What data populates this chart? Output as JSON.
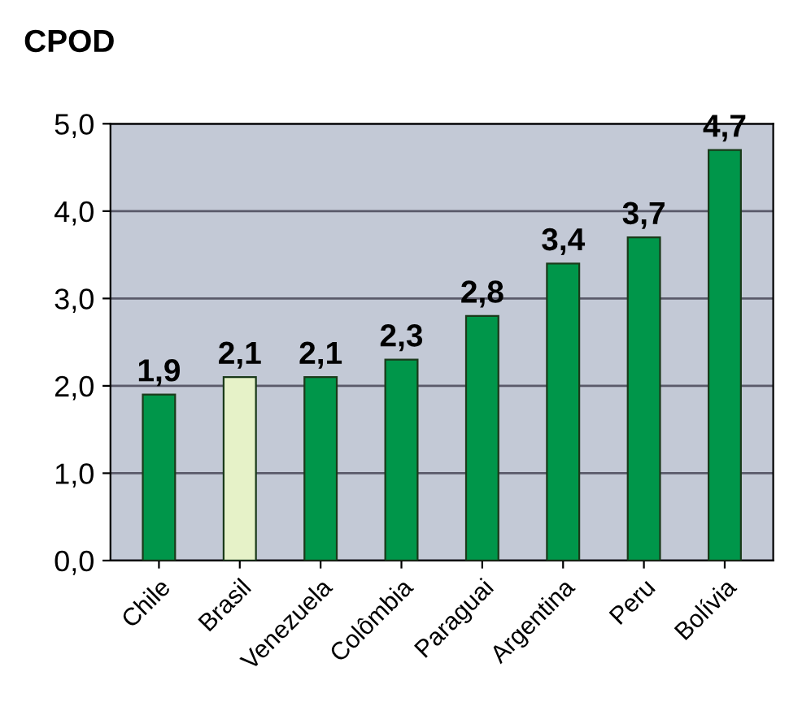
{
  "chart_data": {
    "type": "bar",
    "title": "CPOD",
    "categories": [
      "Chile",
      "Brasil",
      "Venezuela",
      "Colômbia",
      "Paraguai",
      "Argentina",
      "Peru",
      "Bolívia"
    ],
    "values": [
      1.9,
      2.1,
      2.1,
      2.3,
      2.8,
      3.4,
      3.7,
      4.7
    ],
    "colors": [
      "#00964a",
      "#e6f2c8",
      "#00964a",
      "#00964a",
      "#00964a",
      "#00964a",
      "#00964a",
      "#00964a"
    ],
    "value_labels": [
      "1,9",
      "2,1",
      "2,1",
      "2,3",
      "2,8",
      "3,4",
      "3,7",
      "4,7"
    ],
    "ylim": [
      0,
      5
    ],
    "yticks": [
      {
        "value": 0,
        "label": "0,0"
      },
      {
        "value": 1,
        "label": "1,0"
      },
      {
        "value": 2,
        "label": "2,0"
      },
      {
        "value": 3,
        "label": "3,0"
      },
      {
        "value": 4,
        "label": "4,0"
      },
      {
        "value": 5,
        "label": "5,0"
      }
    ],
    "grid": "y"
  }
}
